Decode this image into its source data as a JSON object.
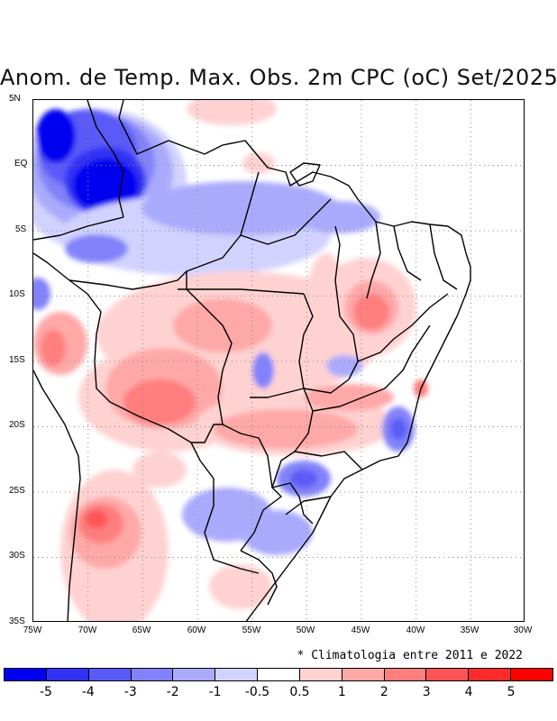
{
  "title": "Anom. de Temp. Max. Obs. 2m CPC (oC) Set/2025",
  "axes": {
    "lat_labels": [
      "5N",
      "EQ",
      "5S",
      "10S",
      "15S",
      "20S",
      "25S",
      "30S",
      "35S"
    ],
    "lon_labels": [
      "75W",
      "70W",
      "65W",
      "60W",
      "55W",
      "50W",
      "45W",
      "40W",
      "35W",
      "30W"
    ]
  },
  "footnote": "* Climatologia entre 2011 e 2022",
  "colorbar": {
    "colors": [
      "#0000f0",
      "#3232f5",
      "#5a5af8",
      "#8282fa",
      "#aaaafc",
      "#d2d2fe",
      "#ffffff",
      "#ffd2d2",
      "#ffa8a8",
      "#ff7e7e",
      "#ff5454",
      "#ff2a2a",
      "#ff0000"
    ],
    "labels": [
      "-5",
      "-4",
      "-3",
      "-2",
      "-1",
      "-0.5",
      "0.5",
      "1",
      "2",
      "3",
      "4",
      "5"
    ]
  },
  "icons": {
    "footnote_marker": "asterisk-icon"
  }
}
